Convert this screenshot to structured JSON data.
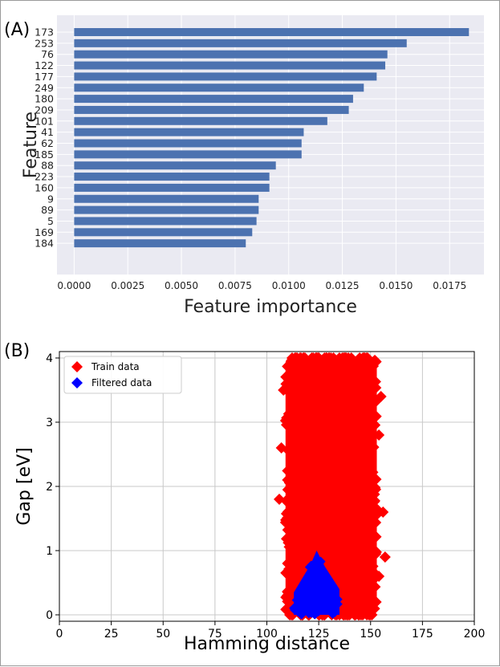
{
  "panels": {
    "a_label": "(A)",
    "b_label": "(B)"
  },
  "chart_data": [
    {
      "type": "bar",
      "orientation": "horizontal",
      "title": "",
      "xlabel": "Feature importance",
      "ylabel": "Feature",
      "categories": [
        "173",
        "253",
        "76",
        "122",
        "177",
        "249",
        "180",
        "209",
        "101",
        "41",
        "62",
        "185",
        "88",
        "223",
        "160",
        "9",
        "89",
        "5",
        "169",
        "184"
      ],
      "values": [
        0.0184,
        0.0155,
        0.0146,
        0.0145,
        0.0141,
        0.0135,
        0.013,
        0.0128,
        0.0118,
        0.0107,
        0.0106,
        0.0106,
        0.0094,
        0.0091,
        0.0091,
        0.0086,
        0.0086,
        0.0085,
        0.0083,
        0.008
      ],
      "xlim": [
        -0.0008,
        0.0191
      ],
      "xticks": [
        0.0,
        0.0025,
        0.005,
        0.0075,
        0.01,
        0.0125,
        0.015,
        0.0175
      ],
      "xtick_labels": [
        "0.0000",
        "0.0025",
        "0.0050",
        "0.0075",
        "0.0100",
        "0.0125",
        "0.0150",
        "0.0175"
      ],
      "grid": true,
      "background": "#eaeaf2",
      "bar_color": "#4c72b0"
    },
    {
      "type": "scatter",
      "title": "",
      "xlabel": "Hamming distance",
      "ylabel": "Gap [eV]",
      "xlim": [
        0,
        200
      ],
      "ylim": [
        -0.1,
        4.1
      ],
      "xticks": [
        0,
        25,
        50,
        75,
        100,
        125,
        150,
        175,
        200
      ],
      "yticks": [
        0,
        1,
        2,
        3,
        4
      ],
      "grid": true,
      "legend_position": "top-left",
      "series": [
        {
          "name": "Train data",
          "color": "#ff0000",
          "marker": "diamond",
          "region_x_bounds": [
            109,
            153
          ],
          "region_y_range": [
            0.0,
            4.0
          ],
          "outlier_points": [
            [
              108,
              3.5
            ],
            [
              110,
              2.1
            ],
            [
              106,
              1.8
            ],
            [
              155,
              3.4
            ],
            [
              154,
              2.8
            ],
            [
              157,
              0.9
            ],
            [
              154,
              0.6
            ],
            [
              110,
              0.3
            ],
            [
              152,
              1.2
            ],
            [
              107,
              2.6
            ],
            [
              156,
              1.6
            ],
            [
              110,
              0.8
            ]
          ]
        },
        {
          "name": "Filtered data",
          "color": "#0000ff",
          "marker": "diamond",
          "region_x_bounds": [
            113,
            135
          ],
          "region_y_range": [
            0.0,
            1.0
          ],
          "apex": [
            124,
            1.0
          ]
        }
      ]
    }
  ]
}
